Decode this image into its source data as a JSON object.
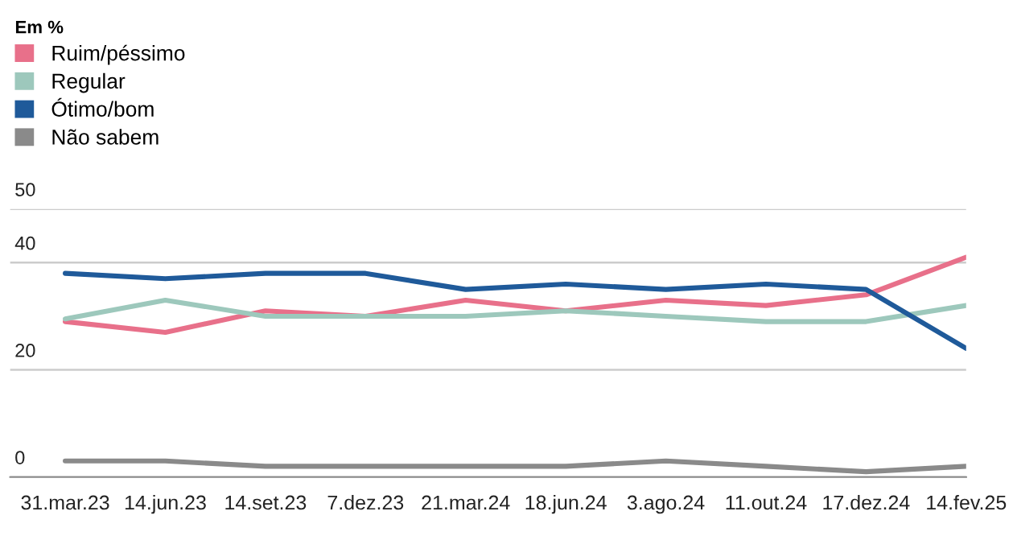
{
  "chart_data": {
    "type": "line",
    "legend_title": "Em %",
    "categories": [
      "31.mar.23",
      "14.jun.23",
      "14.set.23",
      "7.dez.23",
      "21.mar.24",
      "18.jun.24",
      "3.ago.24",
      "11.out.24",
      "17.dez.24",
      "14.fev.25"
    ],
    "series": [
      {
        "name": "Ruim/péssimo",
        "color": "#e8708a",
        "values": [
          29,
          27,
          31,
          30,
          33,
          31,
          33,
          32,
          34,
          41
        ]
      },
      {
        "name": "Regular",
        "color": "#9dc8bc",
        "values": [
          29.5,
          33,
          30,
          30,
          30,
          31,
          30,
          29,
          29,
          32
        ]
      },
      {
        "name": "Ótimo/bom",
        "color": "#1f5a9a",
        "values": [
          38,
          37,
          38,
          38,
          35,
          36,
          35,
          36,
          35,
          24
        ]
      },
      {
        "name": "Não sabem",
        "color": "#8a8a8a",
        "values": [
          3,
          3,
          2,
          2,
          2,
          2,
          3,
          2,
          1,
          2
        ]
      }
    ],
    "ylim": [
      0,
      50
    ],
    "yticks": [
      0,
      20,
      40,
      50
    ],
    "grid": "y",
    "legend": "top left",
    "marker": "none",
    "line_style": "solid"
  }
}
